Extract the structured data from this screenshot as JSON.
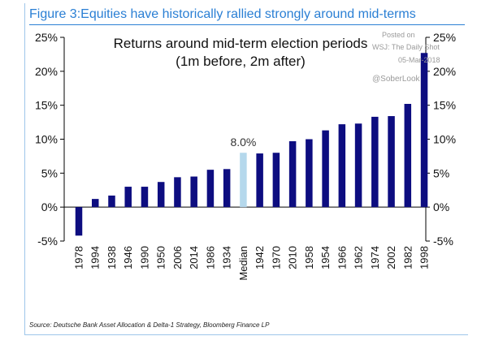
{
  "header": {
    "title": "Figure 3:Equities have historically rallied strongly around mid-terms"
  },
  "watermark": {
    "line1": "Posted on",
    "line2": "WSJ: The Daily Shot",
    "line3": "05-Mar-2018",
    "handle": "@SoberLook"
  },
  "footer": {
    "source": "Source: Deutsche Bank Asset Allocation & Delta-1 Strategy, Bloomberg Finance LP"
  },
  "chart_data": {
    "type": "bar",
    "title_lines": [
      "Returns around mid-term election periods",
      "(1m before, 2m after)"
    ],
    "categories": [
      "1978",
      "1994",
      "1938",
      "1946",
      "1990",
      "1950",
      "2006",
      "2014",
      "1986",
      "1934",
      "Median",
      "1942",
      "1970",
      "2010",
      "1958",
      "1954",
      "1966",
      "1962",
      "1974",
      "2002",
      "1982",
      "1998"
    ],
    "values": [
      -4.2,
      1.2,
      1.7,
      3.0,
      3.0,
      3.7,
      4.4,
      4.5,
      5.5,
      5.6,
      8.0,
      7.9,
      8.0,
      9.7,
      10.0,
      11.3,
      12.2,
      12.3,
      13.3,
      13.4,
      15.2,
      22.7
    ],
    "highlight_index": 10,
    "data_labels": [
      {
        "index": 10,
        "text": "8.0%"
      }
    ],
    "colors": {
      "bar": "#0d0d80",
      "highlight": "#b5d8ec",
      "axis": "#000000"
    },
    "ylim": [
      -5,
      25
    ],
    "yticks": [
      -5,
      0,
      5,
      10,
      15,
      20,
      25
    ],
    "ytick_labels": [
      "-5%",
      "0%",
      "5%",
      "10%",
      "15%",
      "20%",
      "25%"
    ],
    "xlabel": "",
    "ylabel": ""
  }
}
